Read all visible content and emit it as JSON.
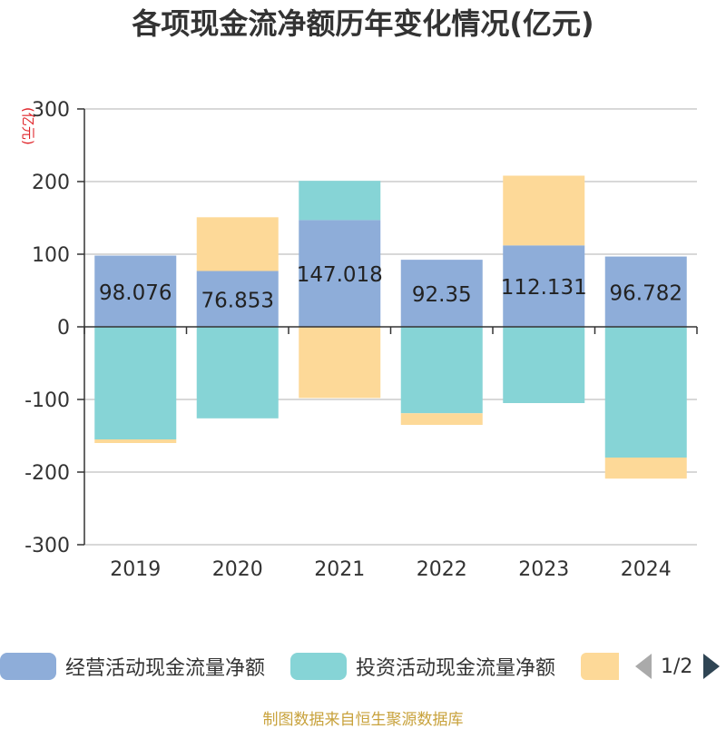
{
  "title": "各项现金流净额历年变化情况(亿元)",
  "unit_label": "(亿元)",
  "source": "制图数据来自恒生聚源数据库",
  "legend": {
    "items": [
      {
        "label": "经营活动现金流量净额",
        "color": "#8eadd9"
      },
      {
        "label": "投资活动现金流量净额",
        "color": "#86d4d6"
      },
      {
        "label": "",
        "color": "#fdd998"
      }
    ],
    "page_text": "1/2"
  },
  "chart_data": {
    "type": "bar",
    "stacked": true,
    "categories": [
      "2019",
      "2020",
      "2021",
      "2022",
      "2023",
      "2024"
    ],
    "ylim": [
      -300,
      300
    ],
    "yticks": [
      300,
      200,
      100,
      0,
      -100,
      -200,
      -300
    ],
    "grid": true,
    "legend_position": "bottom",
    "series": [
      {
        "name": "经营活动现金流量净额",
        "color": "#8eadd9",
        "values": [
          98.076,
          76.853,
          147.018,
          92.35,
          112.131,
          96.782
        ],
        "labels": [
          "98.076",
          "76.853",
          "147.018",
          "92.35",
          "112.131",
          "96.782"
        ]
      },
      {
        "name": "投资活动现金流量净额",
        "color": "#86d4d6",
        "values": [
          -155,
          -126,
          54,
          -119,
          -105,
          -180
        ]
      },
      {
        "color": "#fdd998",
        "values": [
          -5,
          74,
          -98,
          -16,
          96,
          -29
        ]
      }
    ]
  }
}
